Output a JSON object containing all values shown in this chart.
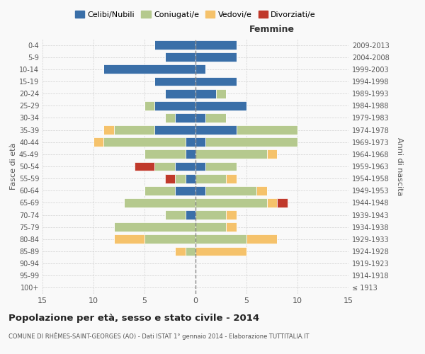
{
  "age_groups": [
    "100+",
    "95-99",
    "90-94",
    "85-89",
    "80-84",
    "75-79",
    "70-74",
    "65-69",
    "60-64",
    "55-59",
    "50-54",
    "45-49",
    "40-44",
    "35-39",
    "30-34",
    "25-29",
    "20-24",
    "15-19",
    "10-14",
    "5-9",
    "0-4"
  ],
  "birth_years": [
    "≤ 1913",
    "1914-1918",
    "1919-1923",
    "1924-1928",
    "1929-1933",
    "1934-1938",
    "1939-1943",
    "1944-1948",
    "1949-1953",
    "1954-1958",
    "1959-1963",
    "1964-1968",
    "1969-1973",
    "1974-1978",
    "1979-1983",
    "1984-1988",
    "1989-1993",
    "1994-1998",
    "1999-2003",
    "2004-2008",
    "2009-2013"
  ],
  "males": {
    "celibi": [
      0,
      0,
      0,
      0,
      0,
      0,
      1,
      0,
      2,
      1,
      2,
      1,
      1,
      4,
      2,
      4,
      3,
      4,
      9,
      3,
      4
    ],
    "coniugati": [
      0,
      0,
      0,
      1,
      5,
      8,
      2,
      7,
      3,
      1,
      2,
      4,
      8,
      4,
      1,
      1,
      0,
      0,
      0,
      0,
      0
    ],
    "vedovi": [
      0,
      0,
      0,
      1,
      3,
      0,
      0,
      0,
      0,
      0,
      0,
      0,
      1,
      1,
      0,
      0,
      0,
      0,
      0,
      0,
      0
    ],
    "divorziati": [
      0,
      0,
      0,
      0,
      0,
      0,
      0,
      0,
      0,
      1,
      2,
      0,
      0,
      0,
      0,
      0,
      0,
      0,
      0,
      0,
      0
    ]
  },
  "females": {
    "nubili": [
      0,
      0,
      0,
      0,
      0,
      0,
      0,
      0,
      1,
      0,
      1,
      0,
      1,
      4,
      1,
      5,
      2,
      4,
      1,
      4,
      4
    ],
    "coniugate": [
      0,
      0,
      0,
      0,
      5,
      3,
      3,
      7,
      5,
      3,
      3,
      7,
      9,
      6,
      2,
      0,
      1,
      0,
      0,
      0,
      0
    ],
    "vedove": [
      0,
      0,
      0,
      5,
      3,
      1,
      1,
      1,
      1,
      1,
      0,
      1,
      0,
      0,
      0,
      0,
      0,
      0,
      0,
      0,
      0
    ],
    "divorziate": [
      0,
      0,
      0,
      0,
      0,
      0,
      0,
      1,
      0,
      0,
      0,
      0,
      0,
      0,
      0,
      0,
      0,
      0,
      0,
      0,
      0
    ]
  },
  "colors": {
    "celibi": "#3a6fa8",
    "coniugati": "#b5c98e",
    "vedovi": "#f5c26b",
    "divorziati": "#c0392b"
  },
  "xlim": 15,
  "title": "Popolazione per età, sesso e stato civile - 2014",
  "subtitle": "COMUNE DI RHÊMES-SAINT-GEORGES (AO) - Dati ISTAT 1° gennaio 2014 - Elaborazione TUTTITALIA.IT",
  "xlabel_right": "Femmine",
  "ylabel_left": "Fasce di età",
  "ylabel_right": "Anni di nascita",
  "bg_color": "#f9f9f9",
  "grid_color": "#cccccc"
}
